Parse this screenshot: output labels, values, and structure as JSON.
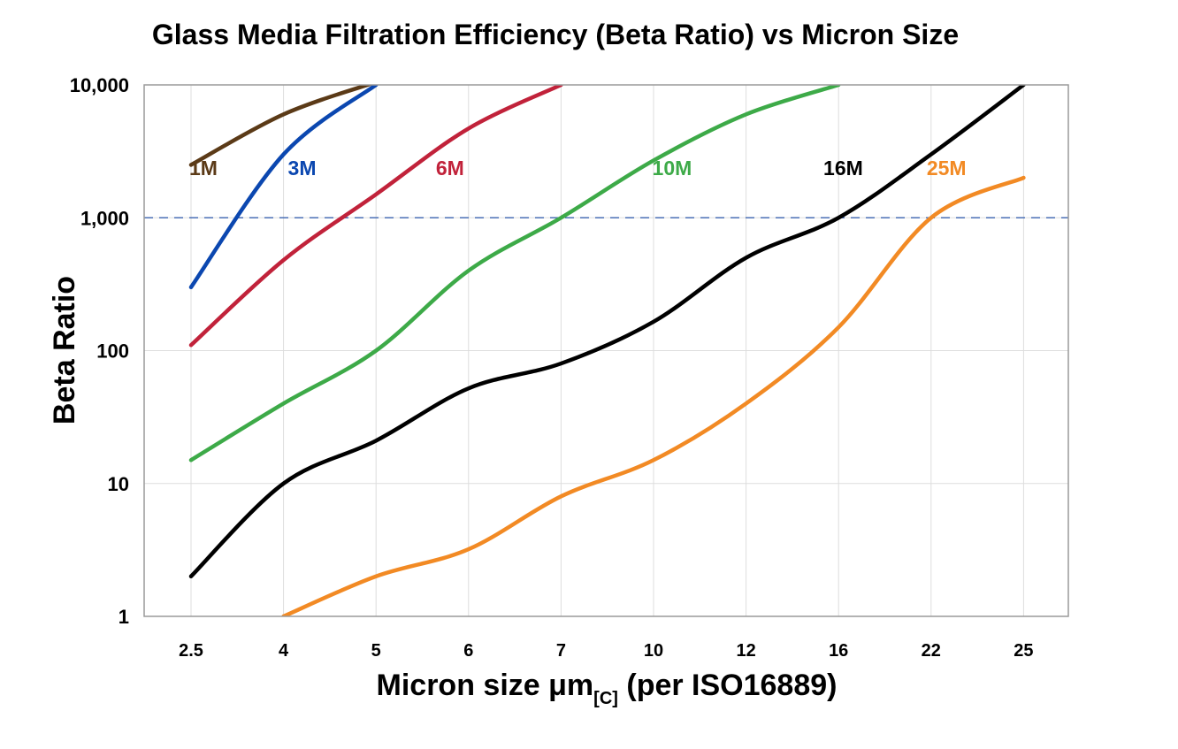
{
  "chart_data": {
    "type": "line",
    "title": "Glass Media Filtration Efficiency (Beta Ratio) vs Micron Size",
    "xlabel_main": "Micron size μm",
    "xlabel_sub": "[C]",
    "xlabel_tail": " (per ISO16889)",
    "ylabel": "Beta Ratio",
    "yscale": "log",
    "ylim": [
      1,
      10000
    ],
    "yticks": [
      1,
      10,
      100,
      1000,
      10000
    ],
    "ytick_labels": [
      "1",
      "10",
      "100",
      "1,000",
      "10,000"
    ],
    "categories": [
      "2.5",
      "4",
      "5",
      "6",
      "7",
      "10",
      "12",
      "16",
      "22",
      "25"
    ],
    "grid": true,
    "reference_line": {
      "y": 1000,
      "style": "dashed",
      "color": "#4a6fb5"
    },
    "series": [
      {
        "name": "1M",
        "color": "#5b3a17",
        "values": [
          2500,
          6000,
          10500,
          null,
          null,
          null,
          null,
          null,
          null,
          null
        ]
      },
      {
        "name": "3M",
        "color": "#0b47b0",
        "values": [
          300,
          3000,
          10000,
          null,
          null,
          null,
          null,
          null,
          null,
          null
        ]
      },
      {
        "name": "6M",
        "color": "#c1223a",
        "values": [
          110,
          480,
          1500,
          4700,
          10000,
          null,
          null,
          null,
          null,
          null
        ]
      },
      {
        "name": "10M",
        "color": "#3daa48",
        "values": [
          15,
          40,
          100,
          400,
          1000,
          2700,
          6000,
          10000,
          null,
          null
        ]
      },
      {
        "name": "16M",
        "color": "#000000",
        "values": [
          2,
          10,
          21,
          52,
          80,
          165,
          500,
          1000,
          3000,
          10000
        ]
      },
      {
        "name": "25M",
        "color": "#f28a24",
        "values": [
          null,
          1,
          2,
          3.2,
          8,
          15,
          40,
          150,
          1000,
          2000
        ]
      }
    ],
    "series_label_positions": [
      "2.7",
      "4.2",
      "5.8",
      "10.4",
      "16.3",
      "22.5"
    ]
  }
}
